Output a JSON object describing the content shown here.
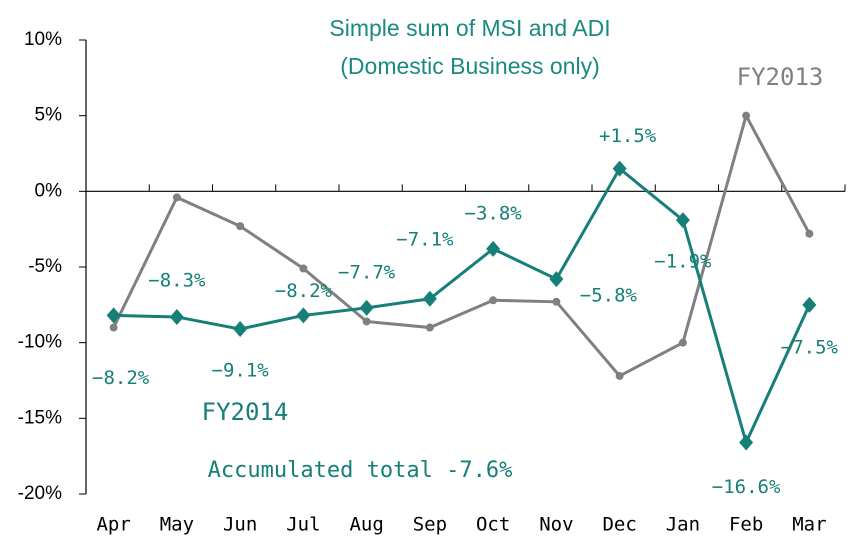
{
  "chart_data": {
    "type": "line",
    "title": [
      "Simple sum of MSI and ADI",
      "(Domestic Business only)"
    ],
    "annotation": "Accumulated total  -7.6%",
    "categories": [
      "Apr",
      "May",
      "Jun",
      "Jul",
      "Aug",
      "Sep",
      "Oct",
      "Nov",
      "Dec",
      "Jan",
      "Feb",
      "Mar"
    ],
    "series": [
      {
        "name": "FY2013",
        "color": "#808080",
        "values": [
          -9.0,
          -0.4,
          -2.3,
          -5.1,
          -8.6,
          -9.0,
          -7.2,
          -7.3,
          -12.2,
          -10.0,
          5.0,
          -2.8
        ]
      },
      {
        "name": "FY2014",
        "color": "#157f78",
        "values": [
          -8.2,
          -8.3,
          -9.1,
          -8.2,
          -7.7,
          -7.1,
          -3.8,
          -5.8,
          1.5,
          -1.9,
          -16.6,
          -7.5
        ],
        "value_labels": [
          "−8.2%",
          "−8.3%",
          "−9.1%",
          "−8.2%",
          "−7.7%",
          "−7.1%",
          "−3.8%",
          "−5.8%",
          "+1.5%",
          "−1.9%",
          "−16.6%",
          "−7.5%"
        ]
      }
    ],
    "ylim": [
      -20,
      10
    ],
    "yticks": [
      {
        "value": -20,
        "label": "-20%"
      },
      {
        "value": -15,
        "label": "-15%"
      },
      {
        "value": -10,
        "label": "-10%"
      },
      {
        "value": -5,
        "label": "-5%"
      },
      {
        "value": 0,
        "label": "0%"
      },
      {
        "value": 5,
        "label": "5%"
      },
      {
        "value": 10,
        "label": "10%"
      }
    ]
  }
}
